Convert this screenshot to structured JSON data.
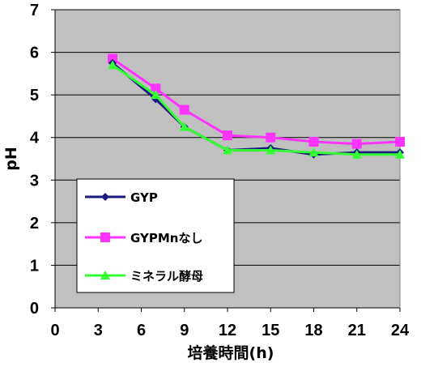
{
  "chart_data": {
    "type": "line",
    "xlabel": "培養時間(h)",
    "ylabel": "pH",
    "xlim": [
      0,
      24
    ],
    "ylim": [
      0,
      7
    ],
    "x_ticks": [
      0,
      3,
      6,
      9,
      12,
      15,
      18,
      21,
      24
    ],
    "y_ticks": [
      0,
      1,
      2,
      3,
      4,
      5,
      6,
      7
    ],
    "grid": "horizontal",
    "legend_position": "bottom-left",
    "x": [
      4,
      7,
      9,
      12,
      15,
      18,
      21,
      24
    ],
    "series": [
      {
        "name": "GYP",
        "color": "#1a1a80",
        "marker": "diamond",
        "values": [
          5.75,
          4.9,
          4.25,
          3.7,
          3.75,
          3.6,
          3.65,
          3.65
        ]
      },
      {
        "name": "GYPMnなし",
        "color": "#ff33ff",
        "marker": "square",
        "values": [
          5.85,
          5.15,
          4.65,
          4.05,
          4.0,
          3.9,
          3.85,
          3.9
        ]
      },
      {
        "name": "ミネラル酵母",
        "color": "#33ff33",
        "marker": "triangle",
        "values": [
          5.7,
          5.0,
          4.25,
          3.7,
          3.7,
          3.65,
          3.6,
          3.6
        ]
      }
    ]
  }
}
